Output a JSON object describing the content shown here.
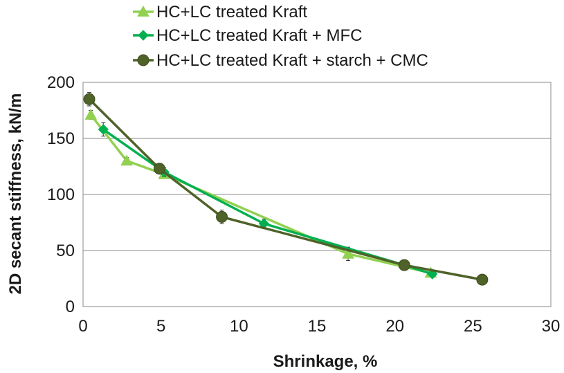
{
  "chart_data": {
    "type": "line",
    "title": "",
    "xlabel": "Shrinkage, %",
    "ylabel": "2D secant stiffness, kN/m",
    "xlim": [
      0,
      30
    ],
    "ylim": [
      0,
      200
    ],
    "xticks": [
      "0",
      "5",
      "10",
      "15",
      "20",
      "25",
      "30"
    ],
    "yticks": [
      "0",
      "50",
      "100",
      "150",
      "200"
    ],
    "grid": "horizontal",
    "legend_position": "top",
    "series": [
      {
        "name": "HC+LC treated Kraft",
        "marker": "triangle",
        "color": "#92d050",
        "x": [
          0.5,
          2.8,
          5.2,
          17.0,
          22.3
        ],
        "y": [
          171,
          130,
          118,
          47,
          30
        ],
        "err": [
          4,
          3,
          3,
          6,
          3
        ]
      },
      {
        "name": "HC+LC treated Kraft + MFC",
        "marker": "diamond",
        "color": "#00b050",
        "x": [
          1.3,
          5.2,
          11.6,
          20.6,
          22.4
        ],
        "y": [
          158,
          120,
          74,
          37,
          29
        ],
        "err": [
          6,
          4,
          4,
          2,
          2
        ]
      },
      {
        "name": "HC+LC treated Kraft + starch + CMC",
        "marker": "circle",
        "color": "#4f6228",
        "x": [
          0.4,
          4.9,
          8.9,
          20.6,
          25.6
        ],
        "y": [
          185,
          123,
          80,
          37,
          24
        ],
        "err": [
          6,
          3,
          6,
          2,
          2
        ]
      }
    ]
  }
}
